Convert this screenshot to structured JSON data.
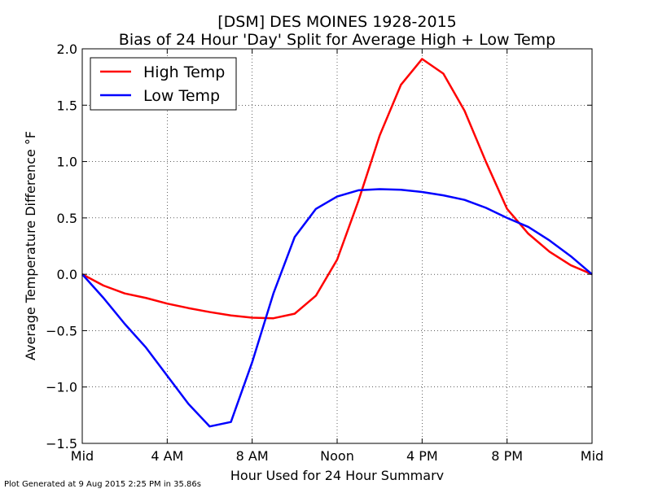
{
  "chart_data": {
    "type": "line",
    "title": "[DSM] DES MOINES 1928-2015",
    "subtitle": "Bias of 24 Hour 'Day' Split for Average High + Low Temp",
    "xlabel": "Hour Used for 24 Hour Summary",
    "ylabel": "Average Temperature Difference °F",
    "xlim": [
      0,
      24
    ],
    "ylim": [
      -1.5,
      2.0
    ],
    "x_ticks": [
      0,
      4,
      8,
      12,
      16,
      20,
      24
    ],
    "x_tick_labels": [
      "Mid",
      "4 AM",
      "8 AM",
      "Noon",
      "4 PM",
      "8 PM",
      "Mid"
    ],
    "y_ticks": [
      -1.5,
      -1.0,
      -0.5,
      0.0,
      0.5,
      1.0,
      1.5,
      2.0
    ],
    "y_tick_labels": [
      "−1.5",
      "−1.0",
      "−0.5",
      "0.0",
      "0.5",
      "1.0",
      "1.5",
      "2.0"
    ],
    "grid": true,
    "legend_position": "top-left",
    "x": [
      0,
      1,
      2,
      3,
      4,
      5,
      6,
      7,
      8,
      9,
      10,
      11,
      12,
      13,
      14,
      15,
      16,
      17,
      18,
      19,
      20,
      21,
      22,
      23,
      24
    ],
    "series": [
      {
        "name": "High Temp",
        "color": "#ff0000",
        "values": [
          0.0,
          -0.1,
          -0.17,
          -0.21,
          -0.26,
          -0.3,
          -0.335,
          -0.365,
          -0.385,
          -0.39,
          -0.35,
          -0.19,
          0.13,
          0.65,
          1.23,
          1.68,
          1.91,
          1.78,
          1.45,
          1.0,
          0.58,
          0.36,
          0.2,
          0.08,
          0.0
        ]
      },
      {
        "name": "Low Temp",
        "color": "#0000ff",
        "values": [
          0.0,
          -0.21,
          -0.44,
          -0.65,
          -0.9,
          -1.15,
          -1.35,
          -1.31,
          -0.78,
          -0.17,
          0.33,
          0.58,
          0.69,
          0.745,
          0.755,
          0.75,
          0.73,
          0.7,
          0.66,
          0.59,
          0.5,
          0.42,
          0.3,
          0.16,
          0.0
        ]
      }
    ]
  },
  "footnote": "Plot Generated at 9 Aug 2015 2:25 PM in 35.86s"
}
